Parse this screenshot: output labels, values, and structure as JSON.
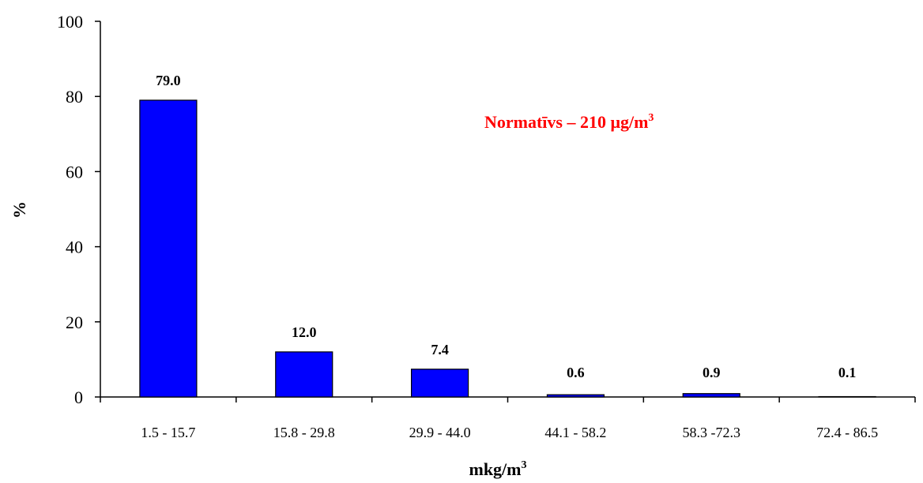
{
  "chart_data": {
    "type": "bar",
    "categories": [
      "1.5 - 15.7",
      "15.8 - 29.8",
      "29.9 - 44.0",
      "44.1 - 58.2",
      "58.3 -72.3",
      "72.4 - 86.5"
    ],
    "values": [
      79.0,
      12.0,
      7.4,
      0.6,
      0.9,
      0.1
    ],
    "data_labels": [
      "79.0",
      "12.0",
      "7.4",
      "0.6",
      "0.9",
      "0.1"
    ],
    "ylabel": "%",
    "xlabel": {
      "base": "mkg/m",
      "superscript": "3"
    },
    "ylim": [
      0,
      100
    ],
    "yticks": [
      0,
      20,
      40,
      60,
      80,
      100
    ],
    "ytick_labels": [
      "0",
      "20",
      "40",
      "60",
      "80",
      "100"
    ],
    "grid": false,
    "legend": null,
    "annotation": {
      "text_main": "Normatīvs – 210 μg/m",
      "text_sup": "3",
      "color": "#ff0000"
    },
    "bar_color": "#0000ff",
    "bar_edge_color": "#000000"
  }
}
